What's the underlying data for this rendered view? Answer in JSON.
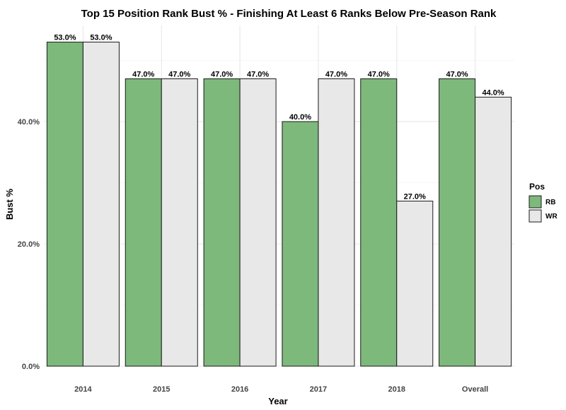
{
  "chart_data": {
    "type": "bar",
    "title": "Top 15 Position Rank Bust % - Finishing At Least 6 Ranks Below Pre-Season Rank",
    "xlabel": "Year",
    "ylabel": "Bust %",
    "categories": [
      "2014",
      "2015",
      "2016",
      "2017",
      "2018",
      "Overall"
    ],
    "series": [
      {
        "name": "RB",
        "color": "#7cb97a",
        "values": [
          53.0,
          47.0,
          47.0,
          40.0,
          47.0,
          47.0
        ],
        "labels": [
          "53.0%",
          "47.0%",
          "47.0%",
          "40.0%",
          "47.0%",
          "47.0%"
        ]
      },
      {
        "name": "WR",
        "color": "#e8e8e8",
        "values": [
          53.0,
          47.0,
          47.0,
          47.0,
          27.0,
          44.0
        ],
        "labels": [
          "53.0%",
          "47.0%",
          "47.0%",
          "47.0%",
          "27.0%",
          "44.0%"
        ]
      }
    ],
    "ylim": [
      0,
      55
    ],
    "y_ticks": [
      0,
      20,
      40
    ],
    "y_tick_labels": [
      "0.0%",
      "20.0%",
      "40.0%"
    ],
    "grid": true,
    "legend": {
      "title": "Pos",
      "position": "right"
    }
  }
}
